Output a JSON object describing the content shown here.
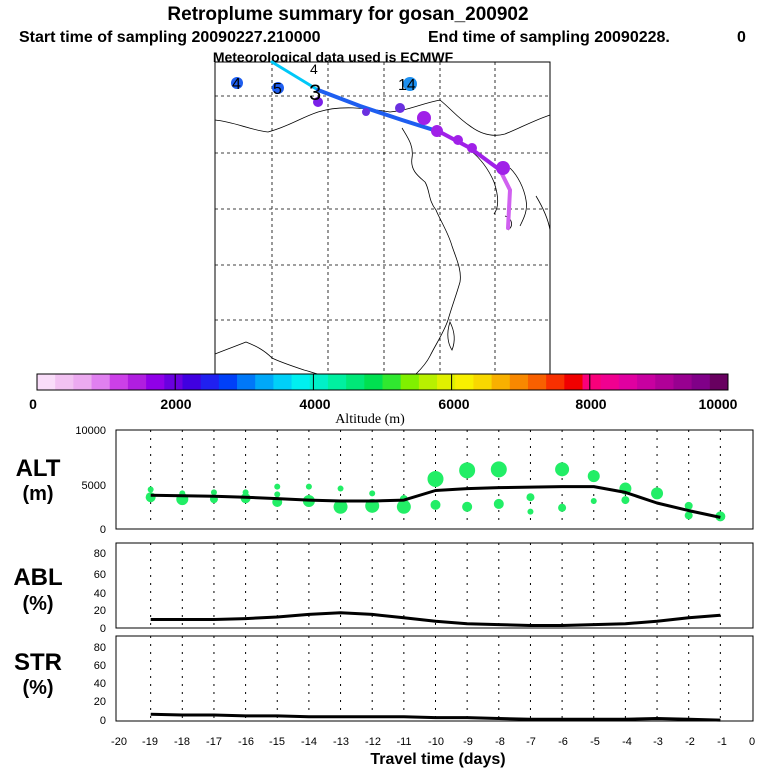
{
  "header": {
    "title": "Retroplume summary for gosan_200902",
    "start": "Start time of sampling 20090227.210000",
    "end": "End time of sampling 20090228.",
    "end_suffix": "0",
    "met": "Meteorological data used is ECMWF"
  },
  "map": {
    "labels": [
      {
        "text": "4",
        "lon": -4.0
      },
      {
        "text": "5",
        "lon": -3.0
      },
      {
        "text": "4",
        "lon": -2.0
      },
      {
        "text": "3",
        "lon": -1.0
      },
      {
        "text": "14",
        "lon": 0.0
      }
    ]
  },
  "colorbar": {
    "ticks": [
      "0",
      "2000",
      "4000",
      "6000",
      "8000",
      "10000"
    ],
    "label": "Altitude (m)",
    "colors": [
      "#f9ddf9",
      "#f2c2f2",
      "#ecaaf0",
      "#e080f0",
      "#cc40e8",
      "#b01ee0",
      "#9000e8",
      "#6a00e0",
      "#4000e0",
      "#2020f0",
      "#0040f8",
      "#0078f8",
      "#00a8f8",
      "#00d0f8",
      "#00f0f0",
      "#00f0c8",
      "#00f0a0",
      "#00e878",
      "#00e050",
      "#30e830",
      "#80f000",
      "#b8f000",
      "#e0f000",
      "#f8f000",
      "#f8d800",
      "#f8b000",
      "#f88800",
      "#f86000",
      "#f83000",
      "#f00000",
      "#f8007a",
      "#f00090",
      "#e000a0",
      "#c800a0",
      "#b00098",
      "#980090",
      "#800088",
      "#680060"
    ],
    "range": [
      0,
      10000
    ]
  },
  "panels": {
    "alt": {
      "label_top": "ALT",
      "label_bot": "(m)",
      "ticks": [
        "10000",
        "5000",
        "0"
      ]
    },
    "abl": {
      "label_top": "ABL",
      "label_bot": "(%)",
      "ticks": [
        "80",
        "60",
        "40",
        "20",
        "0"
      ]
    },
    "str": {
      "label_top": "STR",
      "label_bot": "(%)",
      "ticks": [
        "80",
        "60",
        "40",
        "20",
        "0"
      ]
    }
  },
  "xaxis": {
    "ticks": [
      "-20",
      "-19",
      "-18",
      "-17",
      "-16",
      "-15",
      "-14",
      "-13",
      "-12",
      "-11",
      "-10",
      "-9",
      "-8",
      "-7",
      "-6",
      "-5",
      "-4",
      "-3",
      "-2",
      "-1",
      "0"
    ],
    "label": "Travel time (days)"
  },
  "chart_data": {
    "type": "line",
    "x": [
      -19,
      -18,
      -17,
      -16,
      -15,
      -14,
      -13,
      -12,
      -11,
      -10,
      -9,
      -8,
      -7,
      -6,
      -5,
      -4,
      -3,
      -2,
      -1
    ],
    "series": [
      {
        "name": "ALT (m)",
        "values": [
          3200,
          3150,
          3100,
          3000,
          2850,
          2700,
          2600,
          2600,
          2700,
          3700,
          3900,
          4000,
          4050,
          4100,
          4100,
          3500,
          2400,
          1600,
          900
        ]
      },
      {
        "name": "ABL (%)",
        "values": [
          10,
          10,
          10,
          11,
          13,
          16,
          18,
          16,
          12,
          8,
          5,
          4,
          3,
          3,
          4,
          5,
          8,
          12,
          15
        ]
      },
      {
        "name": "STR (%)",
        "values": [
          8,
          7,
          7,
          6,
          6,
          5,
          5,
          5,
          5,
          4,
          4,
          3,
          2,
          2,
          2,
          2,
          3,
          2,
          1
        ]
      }
    ],
    "alt_dots": [
      {
        "x": -19,
        "y": 3800,
        "r": 3
      },
      {
        "x": -19,
        "y": 3000,
        "r": 5
      },
      {
        "x": -18,
        "y": 3400,
        "r": 3
      },
      {
        "x": -18,
        "y": 2800,
        "r": 6
      },
      {
        "x": -17,
        "y": 3500,
        "r": 3
      },
      {
        "x": -17,
        "y": 2800,
        "r": 4
      },
      {
        "x": -16,
        "y": 3500,
        "r": 3
      },
      {
        "x": -16,
        "y": 2900,
        "r": 5
      },
      {
        "x": -15,
        "y": 4100,
        "r": 3
      },
      {
        "x": -15,
        "y": 3300,
        "r": 3
      },
      {
        "x": -15,
        "y": 2500,
        "r": 5
      },
      {
        "x": -14,
        "y": 4100,
        "r": 3
      },
      {
        "x": -14,
        "y": 2600,
        "r": 6
      },
      {
        "x": -13,
        "y": 3900,
        "r": 3
      },
      {
        "x": -13,
        "y": 2000,
        "r": 7
      },
      {
        "x": -12,
        "y": 3400,
        "r": 3
      },
      {
        "x": -12,
        "y": 2100,
        "r": 7
      },
      {
        "x": -11,
        "y": 2800,
        "r": 4
      },
      {
        "x": -11,
        "y": 2000,
        "r": 7
      },
      {
        "x": -10,
        "y": 4900,
        "r": 8
      },
      {
        "x": -10,
        "y": 2200,
        "r": 5
      },
      {
        "x": -9,
        "y": 5800,
        "r": 8
      },
      {
        "x": -9,
        "y": 2000,
        "r": 5
      },
      {
        "x": -8,
        "y": 5900,
        "r": 8
      },
      {
        "x": -8,
        "y": 2300,
        "r": 5
      },
      {
        "x": -7,
        "y": 3000,
        "r": 4
      },
      {
        "x": -7,
        "y": 1500,
        "r": 3
      },
      {
        "x": -6,
        "y": 5900,
        "r": 7
      },
      {
        "x": -6,
        "y": 1900,
        "r": 4
      },
      {
        "x": -5,
        "y": 5200,
        "r": 6
      },
      {
        "x": -5,
        "y": 2600,
        "r": 3
      },
      {
        "x": -4,
        "y": 3900,
        "r": 6
      },
      {
        "x": -4,
        "y": 2700,
        "r": 4
      },
      {
        "x": -3,
        "y": 3400,
        "r": 6
      },
      {
        "x": -2,
        "y": 2100,
        "r": 4
      },
      {
        "x": -2,
        "y": 1100,
        "r": 4
      },
      {
        "x": -1,
        "y": 1000,
        "r": 5
      }
    ],
    "title": "Retroplume summary for gosan_200902",
    "xlabel": "Travel time (days)",
    "xlim": [
      -20,
      0
    ],
    "ylims": {
      "alt": [
        0,
        10000
      ],
      "abl": [
        0,
        100
      ],
      "str": [
        0,
        100
      ]
    }
  }
}
